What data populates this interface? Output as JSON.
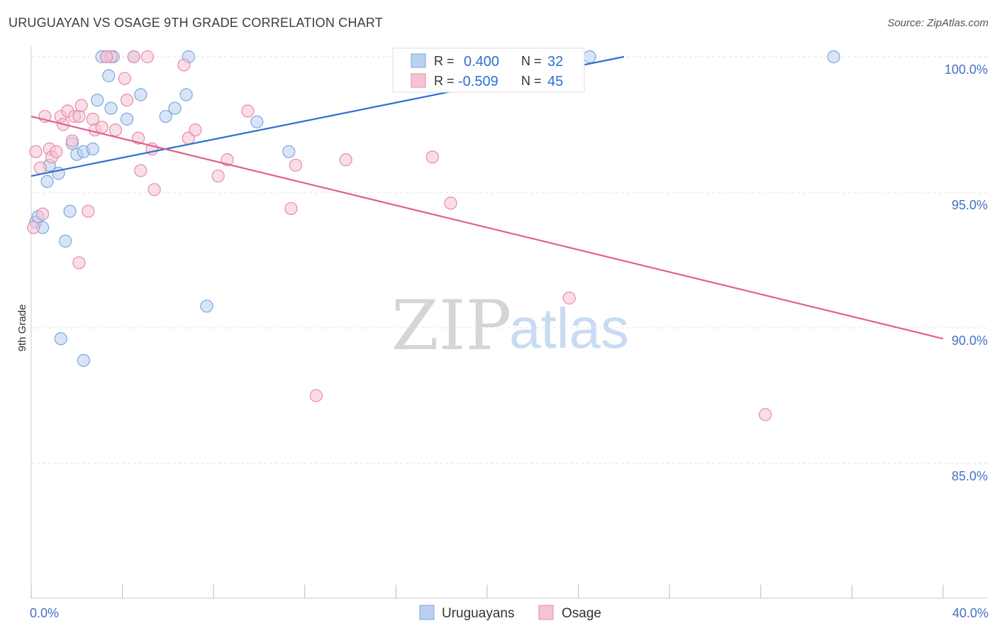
{
  "title": "URUGUAYAN VS OSAGE 9TH GRADE CORRELATION CHART",
  "source": "Source: ZipAtlas.com",
  "watermark": {
    "zip": "ZIP",
    "atlas": "atlas"
  },
  "chart_data": {
    "type": "scatter",
    "title": "URUGUAYAN VS OSAGE 9TH GRADE CORRELATION CHART",
    "xlabel": "",
    "ylabel": "9th Grade",
    "xlim": [
      0.0,
      40.0
    ],
    "ylim": [
      80.7,
      100.4
    ],
    "x_tick_labels": [
      {
        "value": 0.0,
        "label": "0.0%"
      },
      {
        "value": 40.0,
        "label": "40.0%"
      }
    ],
    "y_tick_labels": [
      {
        "value": 100.0,
        "label": "100.0%"
      },
      {
        "value": 95.0,
        "label": "95.0%"
      },
      {
        "value": 90.0,
        "label": "90.0%"
      },
      {
        "value": 85.0,
        "label": "85.0%"
      }
    ],
    "grid": true,
    "legend_position": "top-center",
    "series": [
      {
        "name": "Uruguayans",
        "color": "#7aa6e0",
        "fill": "#b9d0f0",
        "line_color": "#2e6fd1",
        "R": "0.400",
        "N": "32",
        "trend": {
          "x0": 0.0,
          "y0": 95.6,
          "x1": 26.0,
          "y1": 100.0
        },
        "points": [
          [
            0.2,
            93.9
          ],
          [
            0.3,
            94.1
          ],
          [
            0.5,
            93.7
          ],
          [
            0.7,
            95.4
          ],
          [
            0.8,
            96.0
          ],
          [
            1.2,
            95.7
          ],
          [
            1.5,
            93.2
          ],
          [
            1.7,
            94.3
          ],
          [
            1.8,
            96.8
          ],
          [
            2.0,
            96.4
          ],
          [
            2.3,
            96.5
          ],
          [
            2.7,
            96.6
          ],
          [
            2.9,
            98.4
          ],
          [
            3.1,
            100.0
          ],
          [
            3.3,
            100.0
          ],
          [
            3.4,
            99.3
          ],
          [
            3.5,
            98.1
          ],
          [
            3.6,
            100.0
          ],
          [
            4.2,
            97.7
          ],
          [
            4.5,
            100.0
          ],
          [
            4.8,
            98.6
          ],
          [
            5.9,
            97.8
          ],
          [
            6.3,
            98.1
          ],
          [
            6.8,
            98.6
          ],
          [
            6.9,
            100.0
          ],
          [
            7.7,
            90.8
          ],
          [
            9.9,
            97.6
          ],
          [
            11.3,
            96.5
          ],
          [
            24.5,
            100.0
          ],
          [
            35.2,
            100.0
          ],
          [
            1.3,
            89.6
          ],
          [
            2.3,
            88.8
          ]
        ]
      },
      {
        "name": "Osage",
        "color": "#e88aa8",
        "fill": "#f6c3d3",
        "line_color": "#e0608f",
        "R": "-0.509",
        "N": "45",
        "trend": {
          "x0": 0.0,
          "y0": 97.8,
          "x1": 40.0,
          "y1": 89.6
        },
        "points": [
          [
            0.1,
            93.7
          ],
          [
            0.2,
            96.5
          ],
          [
            0.4,
            95.9
          ],
          [
            0.6,
            97.8
          ],
          [
            0.8,
            96.6
          ],
          [
            0.9,
            96.3
          ],
          [
            1.1,
            96.5
          ],
          [
            1.3,
            97.8
          ],
          [
            1.4,
            97.5
          ],
          [
            1.6,
            98.0
          ],
          [
            1.8,
            96.9
          ],
          [
            1.9,
            97.8
          ],
          [
            2.1,
            97.8
          ],
          [
            2.2,
            98.2
          ],
          [
            2.5,
            94.3
          ],
          [
            2.7,
            97.7
          ],
          [
            2.8,
            97.3
          ],
          [
            3.1,
            97.4
          ],
          [
            3.5,
            100.0
          ],
          [
            3.7,
            97.3
          ],
          [
            4.1,
            99.2
          ],
          [
            4.2,
            98.4
          ],
          [
            4.5,
            100.0
          ],
          [
            4.7,
            97.0
          ],
          [
            4.8,
            95.8
          ],
          [
            5.1,
            100.0
          ],
          [
            5.3,
            96.6
          ],
          [
            5.4,
            95.1
          ],
          [
            6.7,
            99.7
          ],
          [
            6.9,
            97.0
          ],
          [
            7.2,
            97.3
          ],
          [
            8.2,
            95.6
          ],
          [
            8.6,
            96.2
          ],
          [
            9.5,
            98.0
          ],
          [
            11.4,
            94.4
          ],
          [
            11.6,
            96.0
          ],
          [
            13.8,
            96.2
          ],
          [
            17.6,
            96.3
          ],
          [
            18.4,
            94.6
          ],
          [
            23.6,
            91.1
          ],
          [
            12.5,
            87.5
          ],
          [
            32.2,
            86.8
          ],
          [
            2.1,
            92.4
          ],
          [
            3.3,
            100.0
          ],
          [
            0.5,
            94.2
          ]
        ]
      }
    ]
  },
  "legend": {
    "r_label": "R =",
    "n_label": "N ="
  }
}
